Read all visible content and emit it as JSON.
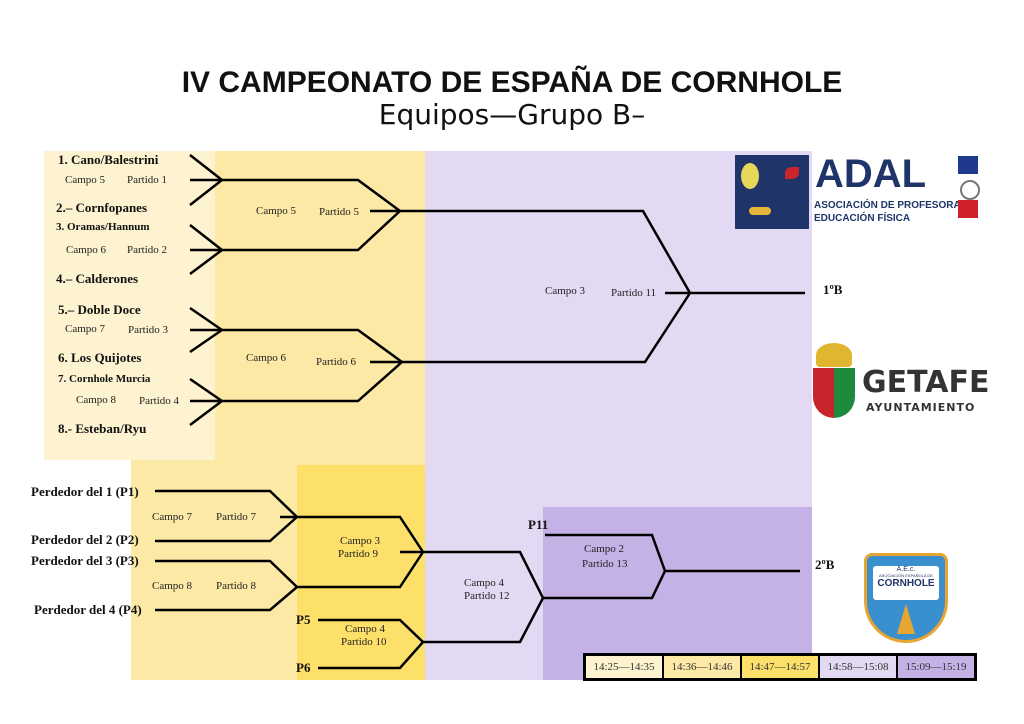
{
  "title": "IV CAMPEONATO DE ESPAÑA DE CORNHOLE",
  "subtitle": "Equipos—Grupo B–",
  "colors": {
    "round1": "#fdf3d0",
    "round2": "#fde9a6",
    "round3": "#fde06a",
    "round4": "#e3d9f2",
    "round5": "#c4b2e6"
  },
  "teams": [
    "1. Cano/Balestrini",
    "2.– Cornfopanes",
    "3. Oramas/Hannum",
    "4.– Calderones",
    "5.– Doble Doce",
    "6. Los Quijotes",
    "7. Cornhole Murcia",
    "8.- Esteban/Ryu"
  ],
  "matches": {
    "m1": {
      "campo": "Campo 5",
      "partido": "Partido 1"
    },
    "m2": {
      "campo": "Campo 6",
      "partido": "Partido 2"
    },
    "m3": {
      "campo": "Campo 7",
      "partido": "Partido 3"
    },
    "m4": {
      "campo": "Campo 8",
      "partido": "Partido 4"
    },
    "m5": {
      "campo": "Campo 5",
      "partido": "Partido 5"
    },
    "m6": {
      "campo": "Campo 6",
      "partido": "Partido 6"
    },
    "m7": {
      "campo": "Campo 7",
      "partido": "Partido 7"
    },
    "m8": {
      "campo": "Campo 8",
      "partido": "Partido 8"
    },
    "m9": {
      "campo": "Campo 3",
      "partido": "Partido 9"
    },
    "m10": {
      "campo": "Campo 4",
      "partido": "Partido 10"
    },
    "m11": {
      "campo": "Campo 3",
      "partido": "Partido 11"
    },
    "m12": {
      "campo": "Campo 4",
      "partido": "Partido 12"
    },
    "m13": {
      "campo": "Campo 2",
      "partido": "Partido 13"
    }
  },
  "losers": [
    "Perdedor del 1 (P1)",
    "Perdedor del 2 (P2)",
    "Perdedor del 3 (P3)",
    "Perdedor del 4 (P4)"
  ],
  "refs": {
    "p5": "P5",
    "p6": "P6",
    "p11": "P11"
  },
  "results": {
    "first": "1ºB",
    "second": "2ºB"
  },
  "times": [
    "14:25—14:35",
    "14:36—14:46",
    "14:47—14:57",
    "14:58—15:08",
    "15:09—15:19"
  ],
  "logos": {
    "adal": "ADAL",
    "adal_sub1": "ASOCIACIÓN DE PROFESORADO",
    "adal_sub2": "EDUCACIÓN FÍSICA",
    "getafe": "GETAFE",
    "getafe_sub": "AYUNTAMIENTO",
    "aec": "A.E.c.",
    "aec_sub": "ASOCIACIÓN ESPAÑOLA DE",
    "aec_main": "CORNHOLE"
  }
}
